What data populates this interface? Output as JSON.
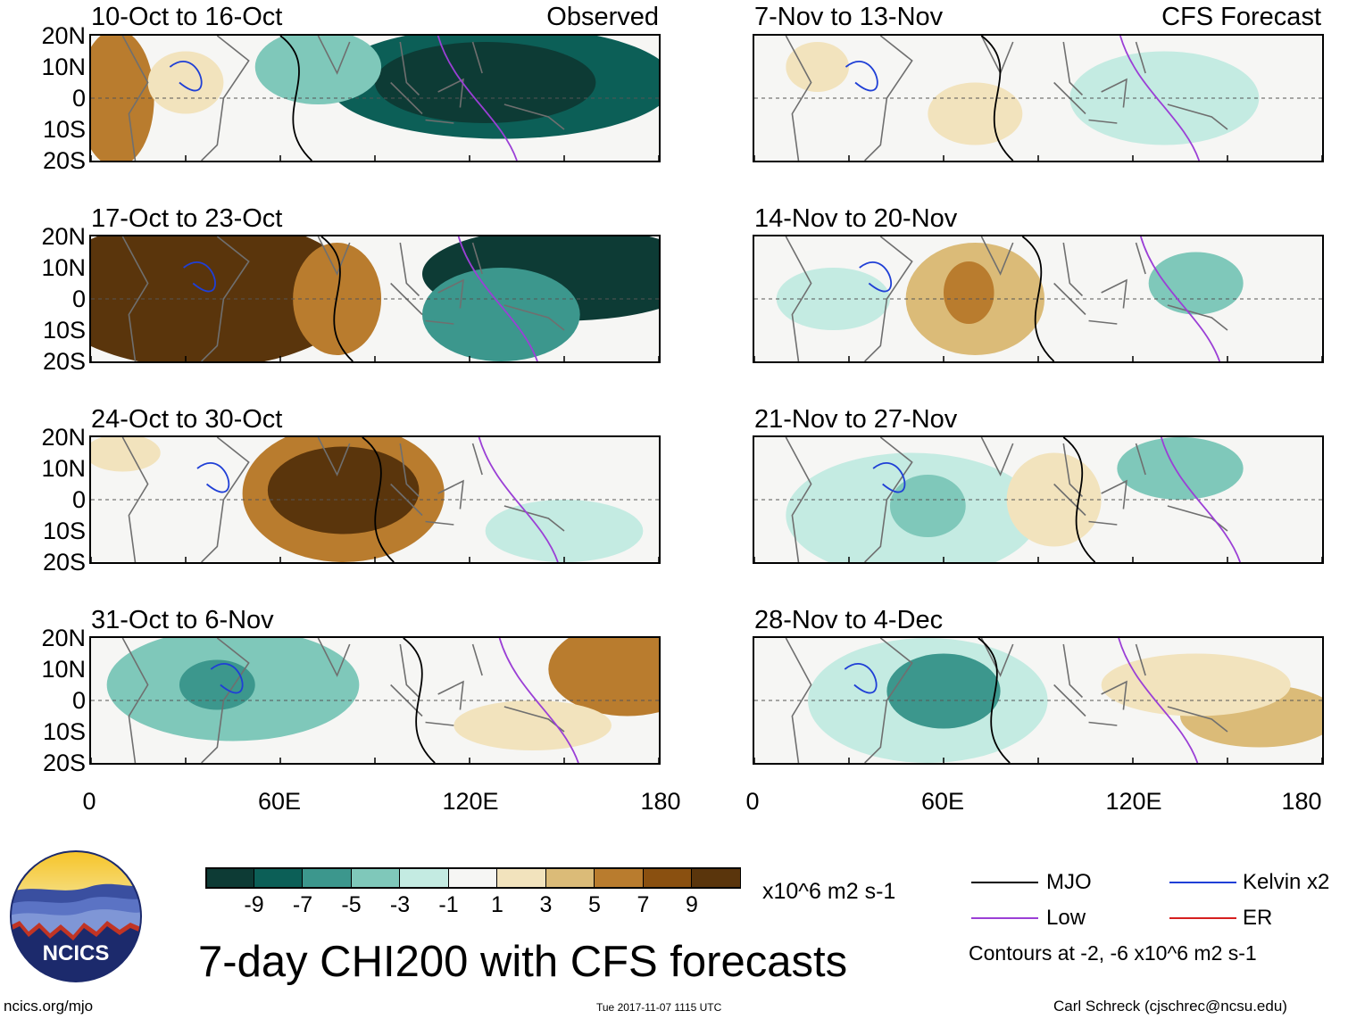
{
  "chart_data": {
    "type": "heatmap",
    "title": "7-day CHI200 with CFS forecasts",
    "units": "x10^6 m2 s-1",
    "section_labels": {
      "observed": "Observed",
      "forecast": "CFS Forecast"
    },
    "lat_ticks": [
      "20N",
      "10N",
      "0",
      "10S",
      "20S"
    ],
    "lon_ticks": [
      "0",
      "60E",
      "120E",
      "180"
    ],
    "xlim": [
      0,
      180
    ],
    "ylim": [
      -20,
      20
    ],
    "colorbar": {
      "ticks": [
        "-9",
        "-7",
        "-5",
        "-3",
        "-1",
        "1",
        "3",
        "5",
        "7",
        "9"
      ],
      "colors": [
        "#0d3b35",
        "#0c5f57",
        "#3c978d",
        "#7fc8ba",
        "#c4ebe2",
        "#f6f6f4",
        "#f2e3bd",
        "#dbbb78",
        "#b97c2e",
        "#8a5010",
        "#5a350c"
      ]
    },
    "panels": [
      {
        "period": "10-Oct to 16-Oct",
        "type": "observed",
        "blobs": [
          {
            "lon": 130,
            "lat": 5,
            "rlon": 55,
            "rlat": 18,
            "level": 1
          },
          {
            "lon": 125,
            "lat": 5,
            "rlon": 35,
            "rlat": 13,
            "level": 0
          },
          {
            "lon": 72,
            "lat": 10,
            "rlon": 20,
            "rlat": 12,
            "level": 3
          },
          {
            "lon": 8,
            "lat": 0,
            "rlon": 12,
            "rlat": 22,
            "level": 8
          },
          {
            "lon": 30,
            "lat": 5,
            "rlon": 12,
            "rlat": 10,
            "level": 6
          }
        ]
      },
      {
        "period": "17-Oct to 23-Oct",
        "type": "observed",
        "blobs": [
          {
            "lon": 35,
            "lat": 2,
            "rlon": 50,
            "rlat": 24,
            "level": 10
          },
          {
            "lon": 78,
            "lat": 0,
            "rlon": 14,
            "rlat": 18,
            "level": 8
          },
          {
            "lon": 150,
            "lat": 8,
            "rlon": 45,
            "rlat": 15,
            "level": 0
          },
          {
            "lon": 130,
            "lat": -5,
            "rlon": 25,
            "rlat": 15,
            "level": 2
          }
        ]
      },
      {
        "period": "24-Oct to 30-Oct",
        "type": "observed",
        "blobs": [
          {
            "lon": 80,
            "lat": 2,
            "rlon": 32,
            "rlat": 22,
            "level": 8
          },
          {
            "lon": 80,
            "lat": 3,
            "rlon": 24,
            "rlat": 14,
            "level": 10
          },
          {
            "lon": 150,
            "lat": -10,
            "rlon": 25,
            "rlat": 10,
            "level": 4
          },
          {
            "lon": 10,
            "lat": 15,
            "rlon": 12,
            "rlat": 6,
            "level": 6
          }
        ]
      },
      {
        "period": "31-Oct to 6-Nov",
        "type": "observed",
        "blobs": [
          {
            "lon": 45,
            "lat": 5,
            "rlon": 40,
            "rlat": 18,
            "level": 3
          },
          {
            "lon": 40,
            "lat": 5,
            "rlon": 12,
            "rlat": 8,
            "level": 2
          },
          {
            "lon": 170,
            "lat": 10,
            "rlon": 25,
            "rlat": 15,
            "level": 8
          },
          {
            "lon": 140,
            "lat": -8,
            "rlon": 25,
            "rlat": 8,
            "level": 6
          }
        ]
      },
      {
        "period": "7-Nov to 13-Nov",
        "type": "forecast",
        "blobs": [
          {
            "lon": 130,
            "lat": 0,
            "rlon": 30,
            "rlat": 15,
            "level": 4
          },
          {
            "lon": 70,
            "lat": -5,
            "rlon": 15,
            "rlat": 10,
            "level": 6
          },
          {
            "lon": 20,
            "lat": 10,
            "rlon": 10,
            "rlat": 8,
            "level": 6
          }
        ]
      },
      {
        "period": "14-Nov to 20-Nov",
        "type": "forecast",
        "blobs": [
          {
            "lon": 70,
            "lat": 0,
            "rlon": 22,
            "rlat": 18,
            "level": 7
          },
          {
            "lon": 68,
            "lat": 2,
            "rlon": 8,
            "rlat": 10,
            "level": 8
          },
          {
            "lon": 140,
            "lat": 5,
            "rlon": 15,
            "rlat": 10,
            "level": 3
          },
          {
            "lon": 25,
            "lat": 0,
            "rlon": 18,
            "rlat": 10,
            "level": 4
          }
        ]
      },
      {
        "period": "21-Nov to 27-Nov",
        "type": "forecast",
        "blobs": [
          {
            "lon": 50,
            "lat": -5,
            "rlon": 40,
            "rlat": 20,
            "level": 4
          },
          {
            "lon": 55,
            "lat": -2,
            "rlon": 12,
            "rlat": 10,
            "level": 3
          },
          {
            "lon": 135,
            "lat": 10,
            "rlon": 20,
            "rlat": 10,
            "level": 3
          },
          {
            "lon": 95,
            "lat": 0,
            "rlon": 15,
            "rlat": 15,
            "level": 6
          }
        ]
      },
      {
        "period": "28-Nov to 4-Dec",
        "type": "forecast",
        "blobs": [
          {
            "lon": 55,
            "lat": 0,
            "rlon": 38,
            "rlat": 20,
            "level": 4
          },
          {
            "lon": 60,
            "lat": 3,
            "rlon": 18,
            "rlat": 12,
            "level": 2
          },
          {
            "lon": 160,
            "lat": -5,
            "rlon": 25,
            "rlat": 10,
            "level": 7
          },
          {
            "lon": 140,
            "lat": 5,
            "rlon": 30,
            "rlat": 10,
            "level": 6
          }
        ]
      }
    ],
    "legend": {
      "items": [
        {
          "label": "MJO",
          "color": "#000000"
        },
        {
          "label": "Kelvin x2",
          "color": "#1f3fd6"
        },
        {
          "label": "Low",
          "color": "#9b3fd6"
        },
        {
          "label": "ER",
          "color": "#d61f1f"
        }
      ],
      "contours_note": "Contours at -2, -6 x10^6 m2 s-1"
    }
  },
  "footer": {
    "logo_text": "NCICS",
    "url": "ncics.org/mjo",
    "timestamp": "Tue 2017-11-07 1115 UTC",
    "credit": "Carl Schreck (cjschrec@ncsu.edu)"
  }
}
